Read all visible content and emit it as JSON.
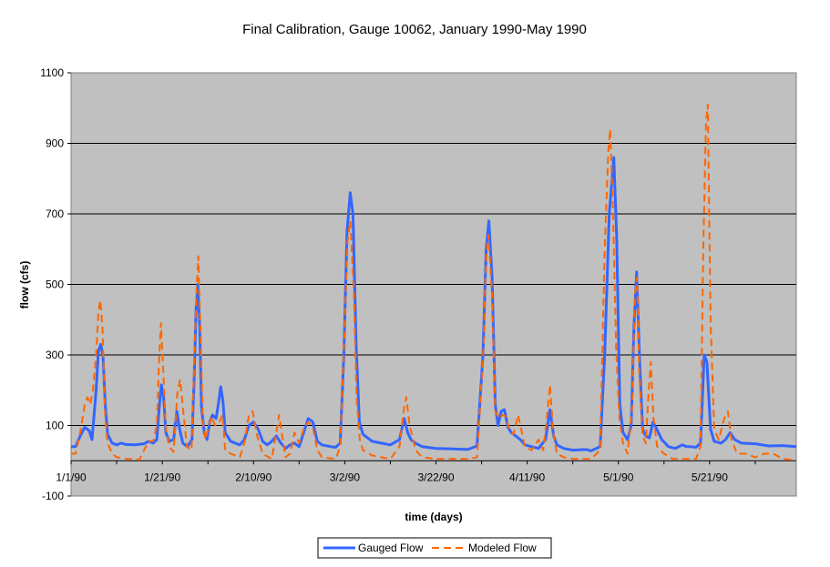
{
  "chart_data": {
    "type": "line",
    "title": "Final Calibration, Gauge 10062, January 1990-May 1990",
    "xlabel": "time (days)",
    "ylabel": "flow (cfs)",
    "ylim": [
      -100,
      1100
    ],
    "yticks": [
      -100,
      100,
      300,
      500,
      700,
      900,
      1100
    ],
    "xlim": [
      0,
      159
    ],
    "xticks": [
      {
        "label": "1/1/90",
        "day": 0
      },
      {
        "label": "1/21/90",
        "day": 20
      },
      {
        "label": "2/10/90",
        "day": 40
      },
      {
        "label": "3/2/90",
        "day": 60
      },
      {
        "label": "3/22/90",
        "day": 80
      },
      {
        "label": "4/11/90",
        "day": 100
      },
      {
        "label": "5/1/90",
        "day": 120
      },
      {
        "label": "5/21/90",
        "day": 140
      }
    ],
    "grid": true,
    "legend_position": "bottom",
    "series": [
      {
        "name": "Gauged Flow",
        "color": "#3366ff",
        "dash": "solid",
        "points": [
          [
            0,
            40
          ],
          [
            1,
            40
          ],
          [
            2,
            70
          ],
          [
            3,
            95
          ],
          [
            4,
            85
          ],
          [
            4.6,
            60
          ],
          [
            5.5,
            200
          ],
          [
            6,
            310
          ],
          [
            6.5,
            330
          ],
          [
            7,
            300
          ],
          [
            7.5,
            160
          ],
          [
            8,
            75
          ],
          [
            9,
            50
          ],
          [
            10,
            45
          ],
          [
            11,
            50
          ],
          [
            12,
            46
          ],
          [
            14,
            45
          ],
          [
            16,
            48
          ],
          [
            17,
            55
          ],
          [
            18,
            50
          ],
          [
            18.8,
            60
          ],
          [
            19.4,
            160
          ],
          [
            19.8,
            215
          ],
          [
            20.3,
            180
          ],
          [
            20.8,
            80
          ],
          [
            21.5,
            55
          ],
          [
            22.5,
            60
          ],
          [
            23.2,
            140
          ],
          [
            23.8,
            90
          ],
          [
            24.5,
            50
          ],
          [
            25.5,
            40
          ],
          [
            26.5,
            60
          ],
          [
            27,
            240
          ],
          [
            27.4,
            430
          ],
          [
            27.8,
            500
          ],
          [
            28.2,
            380
          ],
          [
            28.6,
            150
          ],
          [
            29.2,
            80
          ],
          [
            29.8,
            60
          ],
          [
            30.4,
            110
          ],
          [
            31,
            130
          ],
          [
            31.8,
            120
          ],
          [
            32.4,
            170
          ],
          [
            32.8,
            210
          ],
          [
            33.3,
            170
          ],
          [
            33.8,
            80
          ],
          [
            35,
            55
          ],
          [
            37,
            45
          ],
          [
            38,
            60
          ],
          [
            39,
            100
          ],
          [
            40,
            110
          ],
          [
            41,
            90
          ],
          [
            42,
            55
          ],
          [
            43,
            45
          ],
          [
            44,
            55
          ],
          [
            45,
            70
          ],
          [
            46,
            50
          ],
          [
            47,
            35
          ],
          [
            48,
            45
          ],
          [
            49,
            50
          ],
          [
            50,
            40
          ],
          [
            51,
            80
          ],
          [
            52,
            120
          ],
          [
            53,
            110
          ],
          [
            54,
            55
          ],
          [
            55,
            45
          ],
          [
            57,
            40
          ],
          [
            58,
            38
          ],
          [
            59,
            50
          ],
          [
            59.8,
            300
          ],
          [
            60.5,
            650
          ],
          [
            61.2,
            760
          ],
          [
            61.8,
            700
          ],
          [
            62.5,
            330
          ],
          [
            63.2,
            110
          ],
          [
            64,
            75
          ],
          [
            66,
            55
          ],
          [
            68,
            50
          ],
          [
            70,
            45
          ],
          [
            72,
            60
          ],
          [
            73,
            120
          ],
          [
            73.8,
            80
          ],
          [
            74.5,
            60
          ],
          [
            75.5,
            50
          ],
          [
            77,
            40
          ],
          [
            80,
            35
          ],
          [
            83,
            34
          ],
          [
            87,
            32
          ],
          [
            89,
            42
          ],
          [
            90.3,
            300
          ],
          [
            91,
            600
          ],
          [
            91.6,
            680
          ],
          [
            92.3,
            520
          ],
          [
            93,
            160
          ],
          [
            93.6,
            100
          ],
          [
            94.3,
            140
          ],
          [
            95,
            145
          ],
          [
            95.8,
            95
          ],
          [
            96.5,
            80
          ],
          [
            97.5,
            70
          ],
          [
            98.5,
            60
          ],
          [
            99.5,
            45
          ],
          [
            101,
            40
          ],
          [
            102.5,
            35
          ],
          [
            104,
            60
          ],
          [
            105,
            145
          ],
          [
            105.8,
            70
          ],
          [
            106.5,
            45
          ],
          [
            108,
            35
          ],
          [
            110,
            30
          ],
          [
            113,
            32
          ],
          [
            114,
            28
          ],
          [
            116,
            40
          ],
          [
            117,
            300
          ],
          [
            118,
            700
          ],
          [
            119,
            860
          ],
          [
            119.6,
            640
          ],
          [
            120.3,
            160
          ],
          [
            121,
            80
          ],
          [
            122,
            60
          ],
          [
            122.8,
            100
          ],
          [
            123.4,
            380
          ],
          [
            124,
            535
          ],
          [
            124.6,
            300
          ],
          [
            125.3,
            90
          ],
          [
            126,
            70
          ],
          [
            126.8,
            65
          ],
          [
            127.6,
            110
          ],
          [
            128.4,
            90
          ],
          [
            129.5,
            60
          ],
          [
            131,
            40
          ],
          [
            132.5,
            35
          ],
          [
            134,
            45
          ],
          [
            135,
            40
          ],
          [
            136,
            40
          ],
          [
            137,
            38
          ],
          [
            138,
            50
          ],
          [
            138.8,
            300
          ],
          [
            139.4,
            280
          ],
          [
            140.2,
            90
          ],
          [
            141,
            55
          ],
          [
            142.5,
            50
          ],
          [
            143.5,
            60
          ],
          [
            144.5,
            80
          ],
          [
            145.5,
            60
          ],
          [
            147,
            50
          ],
          [
            150,
            48
          ],
          [
            153,
            42
          ],
          [
            156,
            43
          ],
          [
            159,
            40
          ]
        ]
      },
      {
        "name": "Modeled Flow",
        "color": "#ff6600",
        "dash": "dashed",
        "points": [
          [
            0,
            20
          ],
          [
            1,
            20
          ],
          [
            2,
            80
          ],
          [
            3,
            160
          ],
          [
            3.6,
            180
          ],
          [
            4.2,
            160
          ],
          [
            4.8,
            200
          ],
          [
            5.5,
            300
          ],
          [
            6,
            420
          ],
          [
            6.4,
            455
          ],
          [
            6.9,
            380
          ],
          [
            7.5,
            120
          ],
          [
            8,
            50
          ],
          [
            9,
            20
          ],
          [
            10,
            10
          ],
          [
            12,
            5
          ],
          [
            14,
            5
          ],
          [
            15,
            3
          ],
          [
            16,
            30
          ],
          [
            17,
            55
          ],
          [
            18,
            55
          ],
          [
            18.8,
            100
          ],
          [
            19.3,
            280
          ],
          [
            19.7,
            390
          ],
          [
            20.2,
            260
          ],
          [
            20.8,
            90
          ],
          [
            21.5,
            40
          ],
          [
            22.5,
            25
          ],
          [
            23.3,
            190
          ],
          [
            23.9,
            230
          ],
          [
            24.6,
            140
          ],
          [
            25.4,
            40
          ],
          [
            26.4,
            30
          ],
          [
            27,
            280
          ],
          [
            27.5,
            480
          ],
          [
            27.9,
            580
          ],
          [
            28.4,
            350
          ],
          [
            28.9,
            110
          ],
          [
            29.5,
            60
          ],
          [
            30.2,
            100
          ],
          [
            30.8,
            125
          ],
          [
            31.6,
            100
          ],
          [
            32.5,
            110
          ],
          [
            33.2,
            130
          ],
          [
            33.8,
            30
          ],
          [
            35,
            20
          ],
          [
            37,
            10
          ],
          [
            38,
            50
          ],
          [
            39,
            130
          ],
          [
            39.8,
            140
          ],
          [
            40.8,
            70
          ],
          [
            42,
            20
          ],
          [
            44,
            5
          ],
          [
            45,
            80
          ],
          [
            45.6,
            130
          ],
          [
            46.3,
            70
          ],
          [
            47,
            10
          ],
          [
            48,
            20
          ],
          [
            49,
            80
          ],
          [
            50,
            50
          ],
          [
            51,
            90
          ],
          [
            52,
            110
          ],
          [
            53,
            95
          ],
          [
            54,
            30
          ],
          [
            55,
            10
          ],
          [
            58,
            5
          ],
          [
            59,
            40
          ],
          [
            59.9,
            350
          ],
          [
            60.6,
            620
          ],
          [
            61.2,
            680
          ],
          [
            62,
            480
          ],
          [
            62.6,
            180
          ],
          [
            63.3,
            60
          ],
          [
            64,
            30
          ],
          [
            66,
            15
          ],
          [
            68,
            10
          ],
          [
            70,
            5
          ],
          [
            72,
            40
          ],
          [
            73,
            150
          ],
          [
            73.5,
            180
          ],
          [
            74.2,
            100
          ],
          [
            74.8,
            70
          ],
          [
            75.5,
            30
          ],
          [
            77,
            10
          ],
          [
            80,
            5
          ],
          [
            84,
            5
          ],
          [
            87,
            5
          ],
          [
            89,
            10
          ],
          [
            90.4,
            320
          ],
          [
            91,
            580
          ],
          [
            91.5,
            640
          ],
          [
            92.3,
            470
          ],
          [
            93,
            140
          ],
          [
            93.8,
            120
          ],
          [
            94.6,
            130
          ],
          [
            95.4,
            125
          ],
          [
            96,
            90
          ],
          [
            97,
            75
          ],
          [
            98,
            130
          ],
          [
            98.6,
            95
          ],
          [
            99.5,
            40
          ],
          [
            101,
            30
          ],
          [
            102.5,
            60
          ],
          [
            103.5,
            30
          ],
          [
            104.3,
            120
          ],
          [
            105,
            215
          ],
          [
            105.7,
            80
          ],
          [
            106.5,
            20
          ],
          [
            108,
            10
          ],
          [
            110,
            5
          ],
          [
            114,
            5
          ],
          [
            116,
            30
          ],
          [
            117,
            600
          ],
          [
            117.8,
            880
          ],
          [
            118.2,
            940
          ],
          [
            118.8,
            720
          ],
          [
            119.5,
            320
          ],
          [
            120.2,
            120
          ],
          [
            121,
            50
          ],
          [
            122,
            20
          ],
          [
            123,
            150
          ],
          [
            123.6,
            470
          ],
          [
            124.1,
            520
          ],
          [
            124.6,
            240
          ],
          [
            125.3,
            70
          ],
          [
            126,
            50
          ],
          [
            126.6,
            190
          ],
          [
            127.1,
            280
          ],
          [
            127.7,
            120
          ],
          [
            128.5,
            40
          ],
          [
            130,
            20
          ],
          [
            132,
            5
          ],
          [
            135,
            5
          ],
          [
            137,
            5
          ],
          [
            138,
            40
          ],
          [
            138.6,
            600
          ],
          [
            139.2,
            960
          ],
          [
            139.6,
            1010
          ],
          [
            140.2,
            400
          ],
          [
            141,
            90
          ],
          [
            142,
            60
          ],
          [
            143.2,
            120
          ],
          [
            144,
            140
          ],
          [
            144.8,
            60
          ],
          [
            146,
            20
          ],
          [
            148,
            20
          ],
          [
            150,
            10
          ],
          [
            152,
            20
          ],
          [
            154,
            20
          ],
          [
            156,
            5
          ],
          [
            159,
            2
          ]
        ]
      }
    ]
  }
}
